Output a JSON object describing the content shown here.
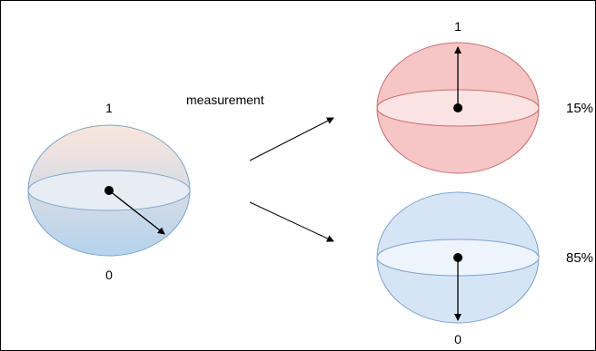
{
  "diagram": {
    "colors": {
      "left_top": "#fae6dc",
      "left_bottom": "#b4d3ec",
      "left_stroke": "#7ea4cc",
      "left_equator": "#eaf0f6",
      "top_fill": "#f6c6c6",
      "top_stroke": "#c87070",
      "top_equator": "#fbe3e3",
      "bottom_fill": "#d6e5f6",
      "bottom_stroke": "#7ea4cc",
      "bottom_equator": "#eef4fb",
      "ink": "#000000"
    },
    "left_sphere": {
      "label_top": "1",
      "label_bottom": "0"
    },
    "measurement_label": "measurement",
    "top_sphere": {
      "label_top": "1",
      "probability": "15%"
    },
    "bottom_sphere": {
      "label_bottom": "0",
      "probability": "85%"
    }
  }
}
